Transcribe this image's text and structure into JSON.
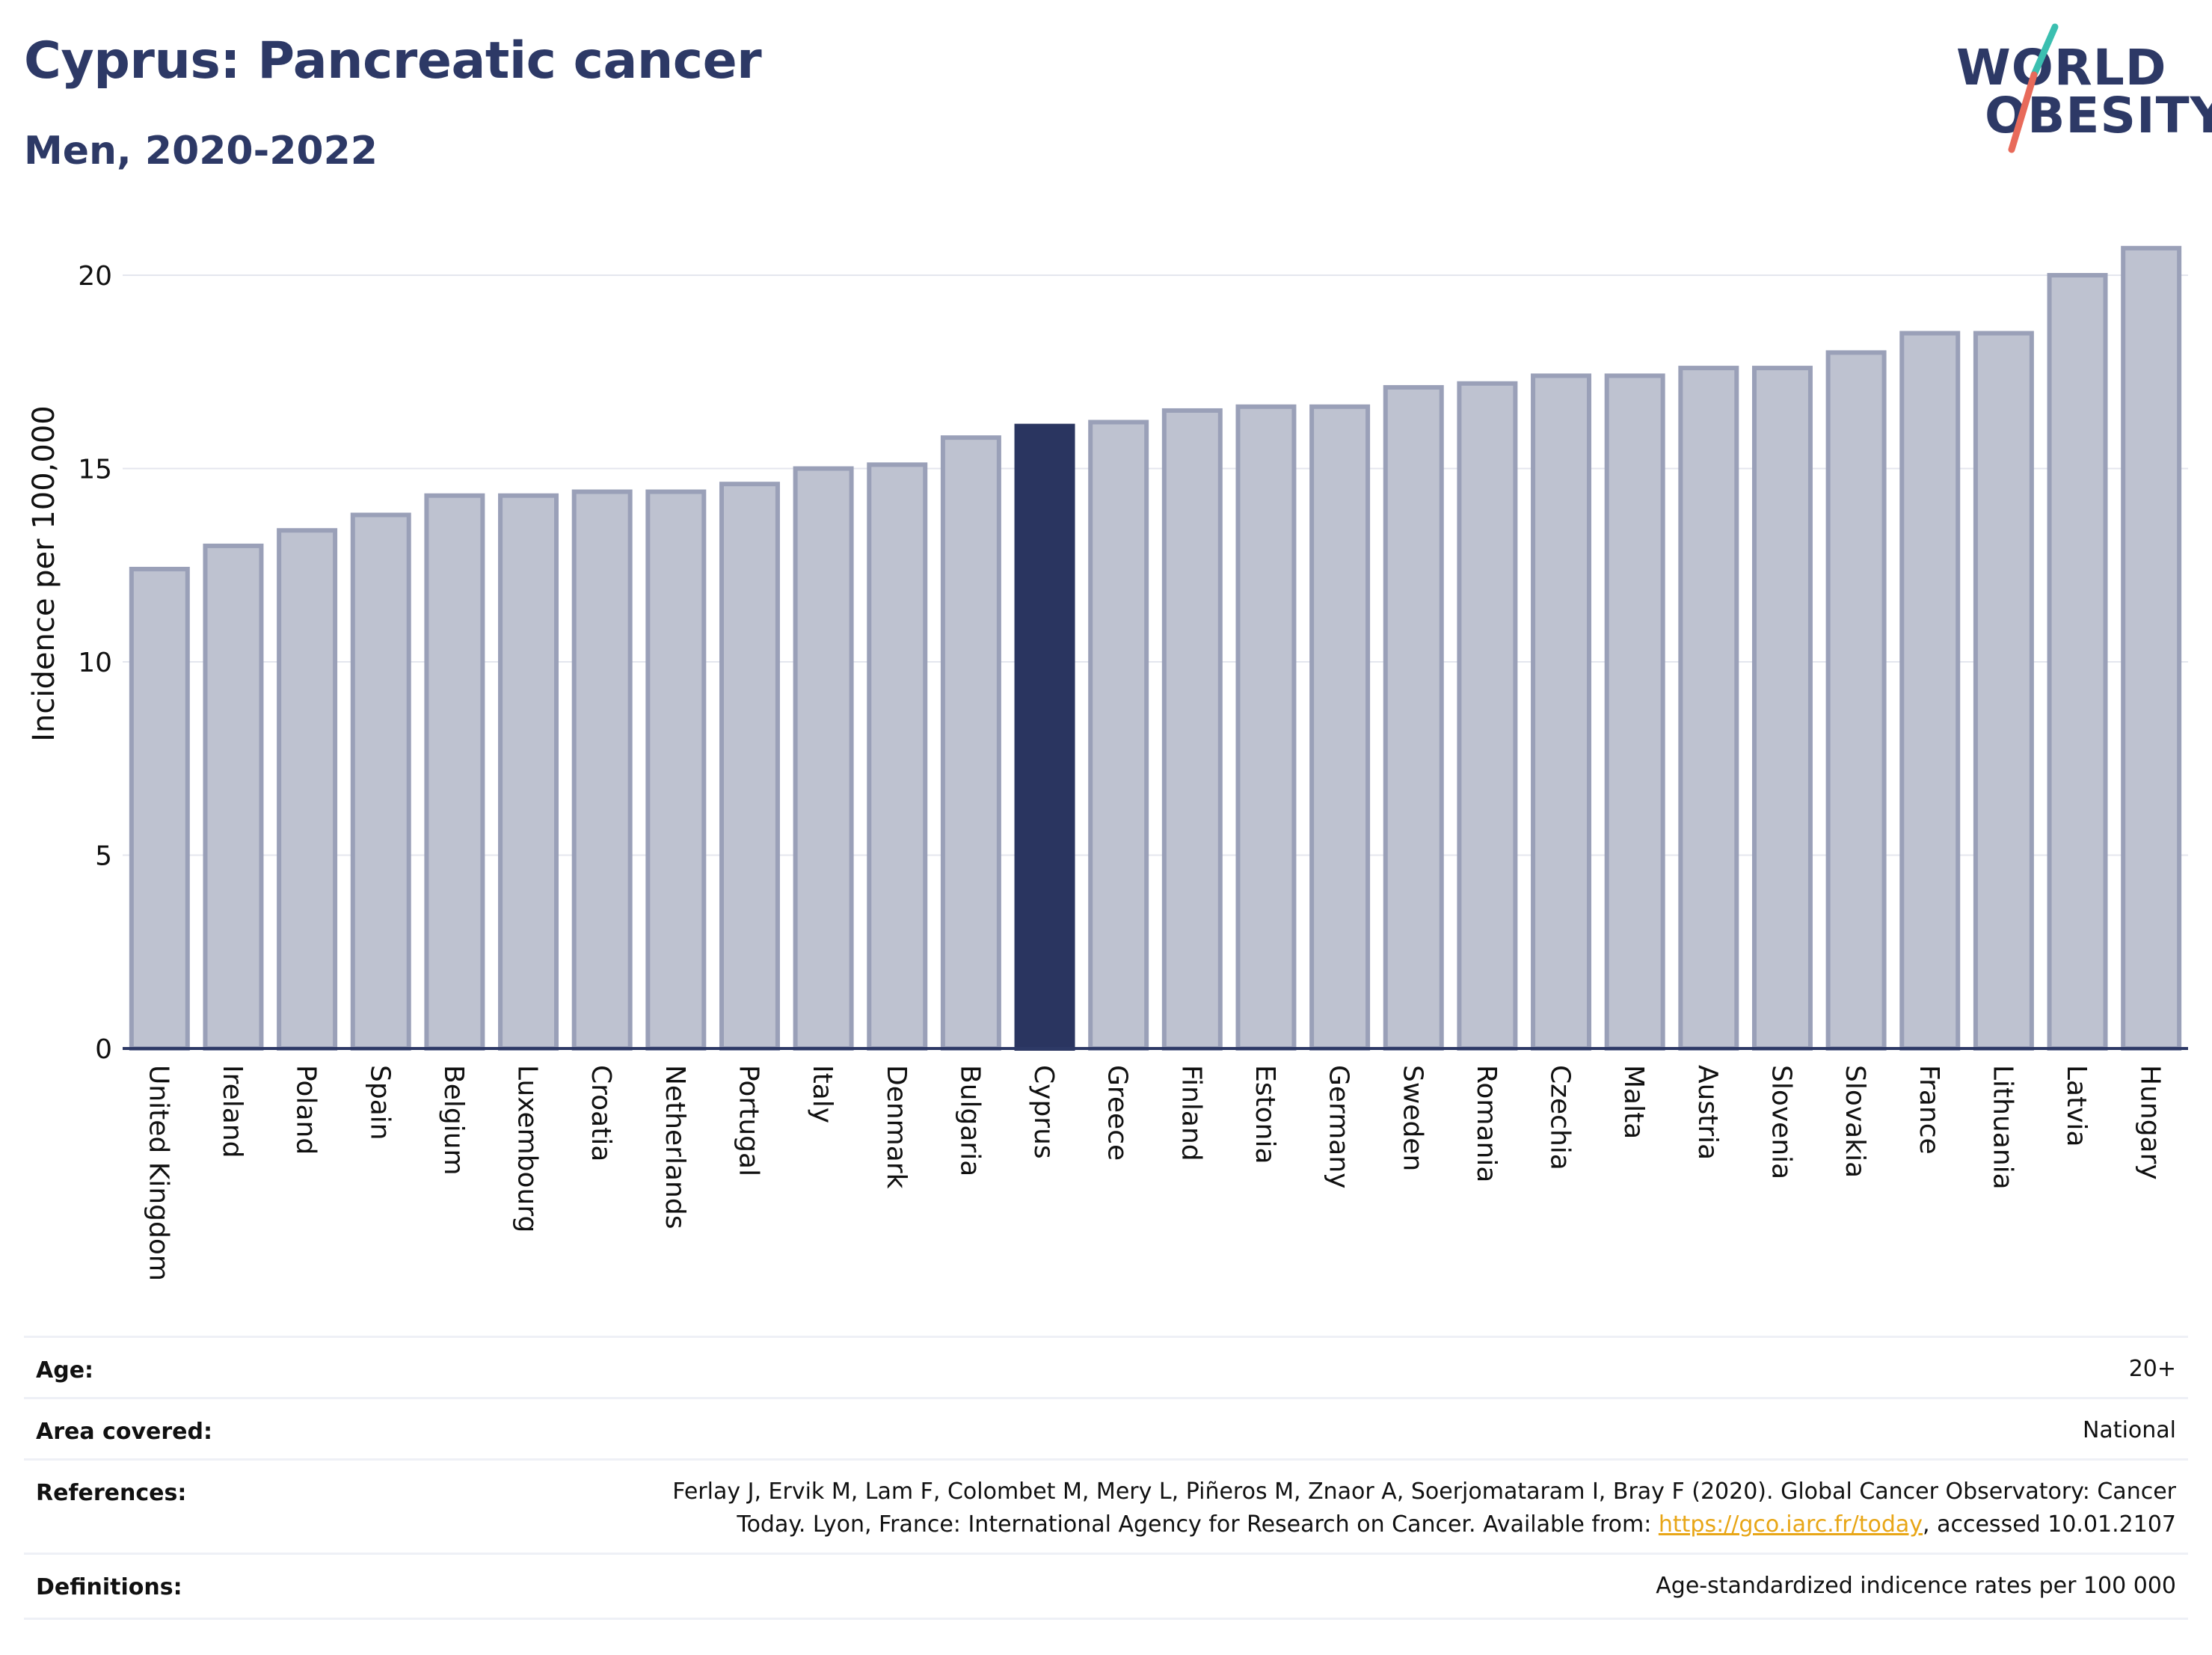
{
  "header": {
    "title": "Cyprus: Pancreatic cancer",
    "subtitle": "Men, 2020-2022"
  },
  "logo": {
    "line1": "WORLD",
    "line2": "OBESITY",
    "colors": {
      "text": "#2d3966",
      "teal": "#3bbfb0",
      "coral": "#e86a5a"
    }
  },
  "chart_data": {
    "type": "bar",
    "ylabel": "Incidence per 100,000",
    "xlabel": "",
    "ylim": [
      0,
      21.5
    ],
    "yticks": [
      0,
      5,
      10,
      15,
      20
    ],
    "grid": true,
    "highlight": "Cyprus",
    "colors": {
      "bar": "#bec2d0",
      "bar_border": "#9aa0b8",
      "highlight": "#2a3560",
      "axis": "#2d3966",
      "grid": "#e4e6ee"
    },
    "categories": [
      "United Kingdom",
      "Ireland",
      "Poland",
      "Spain",
      "Belgium",
      "Luxembourg",
      "Croatia",
      "Netherlands",
      "Portugal",
      "Italy",
      "Denmark",
      "Bulgaria",
      "Cyprus",
      "Greece",
      "Finland",
      "Estonia",
      "Germany",
      "Sweden",
      "Romania",
      "Czechia",
      "Malta",
      "Austria",
      "Slovenia",
      "Slovakia",
      "France",
      "Lithuania",
      "Latvia",
      "Hungary"
    ],
    "values": [
      12.4,
      13.0,
      13.4,
      13.8,
      14.3,
      14.3,
      14.4,
      14.4,
      14.6,
      15.0,
      15.1,
      15.8,
      16.1,
      16.2,
      16.5,
      16.6,
      16.6,
      17.1,
      17.2,
      17.4,
      17.4,
      17.6,
      17.6,
      18.0,
      18.5,
      18.5,
      20.0,
      20.7
    ]
  },
  "meta": {
    "age_label": "Age:",
    "age_value": "20+",
    "area_label": "Area covered:",
    "area_value": "National",
    "references_label": "References:",
    "references_line1": "Ferlay J, Ervik M, Lam F, Colombet M, Mery L, Piñeros M, Znaor A, Soerjomataram I, Bray F (2020). Global Cancer Observatory: Cancer",
    "references_line2_pre": "Today. Lyon, France: International Agency for Research on Cancer. Available from: ",
    "references_link": "https://gco.iarc.fr/today",
    "references_line2_post": ", accessed 10.01.2107",
    "definitions_label": "Definitions:",
    "definitions_value": "Age-standardized indicence rates per 100 000"
  }
}
